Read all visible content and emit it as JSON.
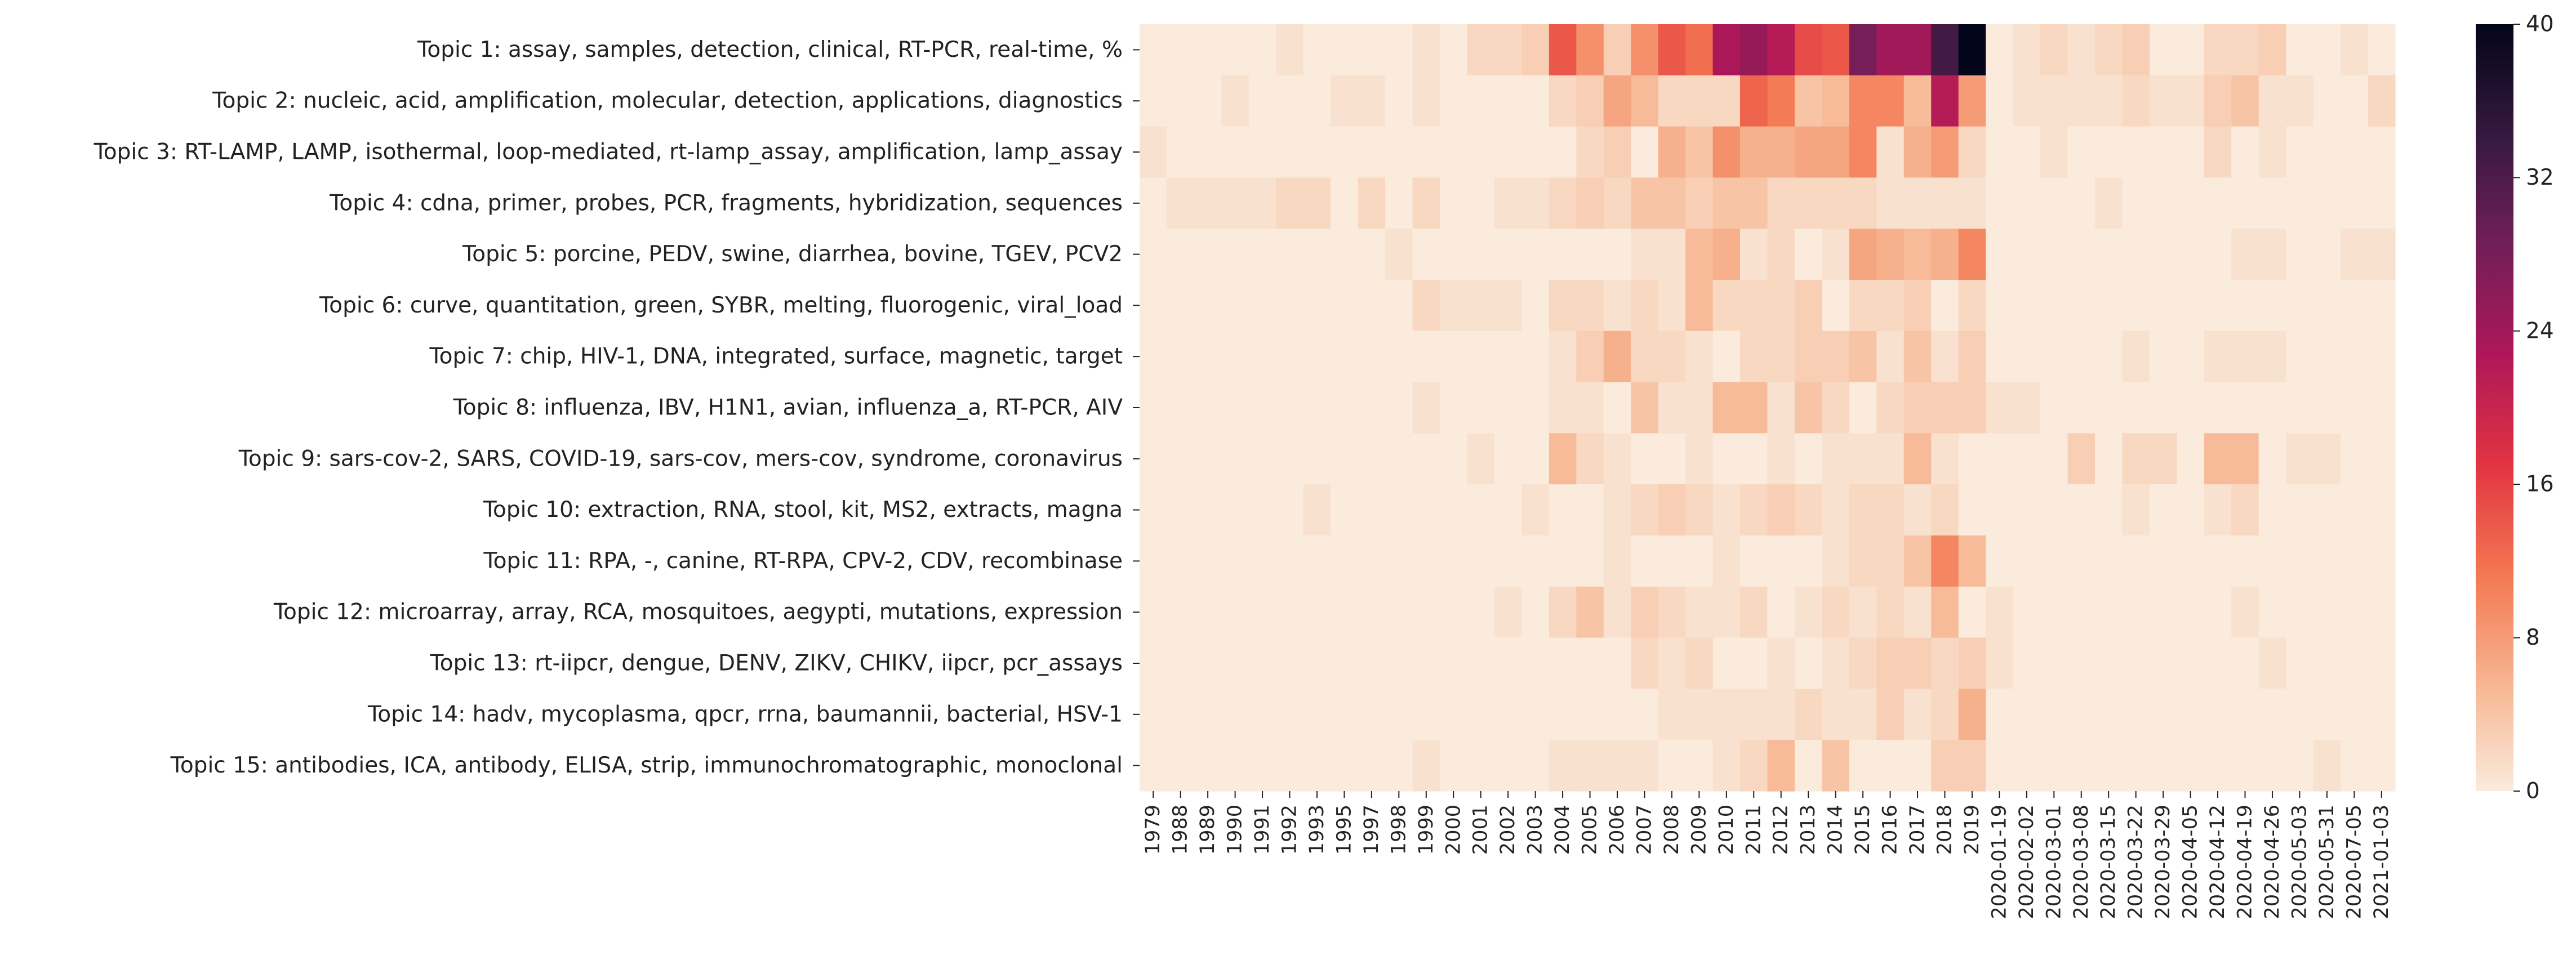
{
  "chart_data": {
    "type": "heatmap",
    "rows": [
      "Topic 1: assay, samples, detection, clinical, RT-PCR, real-time, %",
      "Topic 2: nucleic, acid, amplification, molecular, detection, applications, diagnostics",
      "Topic 3: RT-LAMP, LAMP, isothermal, loop-mediated, rt-lamp_assay, amplification, lamp_assay",
      "Topic 4: cdna, primer, probes, PCR, fragments, hybridization, sequences",
      "Topic 5: porcine, PEDV, swine, diarrhea, bovine, TGEV, PCV2",
      "Topic 6: curve, quantitation, green, SYBR, melting, fluorogenic, viral_load",
      "Topic 7: chip, HIV-1, DNA, integrated, surface, magnetic, target",
      "Topic 8: influenza, IBV, H1N1, avian, influenza_a, RT-PCR, AIV",
      "Topic 9: sars-cov-2, SARS, COVID-19, sars-cov, mers-cov, syndrome, coronavirus",
      "Topic 10: extraction, RNA, stool, kit, MS2, extracts, magna",
      "Topic 11: RPA, -, canine, RT-RPA, CPV-2, CDV, recombinase",
      "Topic 12: microarray, array, RCA, mosquitoes, aegypti, mutations, expression",
      "Topic 13: rt-iipcr, dengue, DENV, ZIKV, CHIKV, iipcr, pcr_assays",
      "Topic 14: hadv, mycoplasma, qpcr, rrna, baumannii, bacterial, HSV-1",
      "Topic 15: antibodies, ICA, antibody, ELISA, strip, immunochromatographic, monoclonal"
    ],
    "columns": [
      "1979",
      "1988",
      "1989",
      "1990",
      "1991",
      "1992",
      "1993",
      "1995",
      "1997",
      "1998",
      "1999",
      "2000",
      "2001",
      "2002",
      "2003",
      "2004",
      "2005",
      "2006",
      "2007",
      "2008",
      "2009",
      "2010",
      "2011",
      "2012",
      "2013",
      "2014",
      "2015",
      "2016",
      "2017",
      "2018",
      "2019",
      "2020-01-19",
      "2020-02-02",
      "2020-03-01",
      "2020-03-08",
      "2020-03-15",
      "2020-03-22",
      "2020-03-29",
      "2020-04-05",
      "2020-04-12",
      "2020-04-19",
      "2020-04-26",
      "2020-05-03",
      "2020-05-31",
      "2020-07-05",
      "2021-01-03"
    ],
    "values": [
      [
        0,
        0,
        0,
        0,
        0,
        1,
        0,
        0,
        0,
        0,
        1,
        0,
        2,
        2,
        3,
        14,
        9,
        3,
        9,
        14,
        12,
        23,
        25,
        22,
        15,
        14,
        28,
        24,
        24,
        33,
        40,
        0,
        1,
        2,
        1,
        2,
        3,
        0,
        0,
        2,
        2,
        3,
        0,
        0,
        1,
        0
      ],
      [
        0,
        0,
        0,
        1,
        0,
        0,
        0,
        1,
        1,
        0,
        1,
        0,
        0,
        0,
        0,
        2,
        3,
        7,
        5,
        2,
        2,
        2,
        13,
        11,
        4,
        5,
        10,
        10,
        5,
        22,
        8,
        0,
        1,
        1,
        1,
        1,
        2,
        1,
        1,
        3,
        4,
        1,
        1,
        0,
        0,
        2
      ],
      [
        1,
        0,
        0,
        0,
        0,
        0,
        0,
        0,
        0,
        0,
        0,
        0,
        0,
        0,
        0,
        0,
        2,
        3,
        0,
        6,
        4,
        9,
        6,
        6,
        7,
        7,
        10,
        1,
        6,
        8,
        2,
        0,
        0,
        1,
        0,
        0,
        0,
        0,
        0,
        2,
        0,
        1,
        0,
        0,
        0,
        0
      ],
      [
        0,
        1,
        1,
        1,
        1,
        2,
        2,
        0,
        2,
        0,
        2,
        0,
        0,
        1,
        1,
        2,
        3,
        2,
        4,
        4,
        3,
        4,
        4,
        2,
        2,
        2,
        2,
        1,
        1,
        1,
        1,
        0,
        0,
        0,
        0,
        1,
        0,
        0,
        0,
        0,
        0,
        0,
        0,
        0,
        0,
        0
      ],
      [
        0,
        0,
        0,
        0,
        0,
        0,
        0,
        0,
        0,
        1,
        0,
        0,
        0,
        0,
        0,
        0,
        0,
        0,
        1,
        1,
        5,
        6,
        1,
        2,
        0,
        1,
        7,
        6,
        5,
        6,
        10,
        0,
        0,
        0,
        0,
        0,
        0,
        0,
        0,
        0,
        1,
        1,
        0,
        0,
        1,
        1
      ],
      [
        0,
        0,
        0,
        0,
        0,
        0,
        0,
        0,
        0,
        0,
        2,
        1,
        1,
        1,
        0,
        2,
        2,
        1,
        2,
        1,
        5,
        2,
        2,
        2,
        3,
        0,
        2,
        2,
        3,
        0,
        2,
        0,
        0,
        0,
        0,
        0,
        0,
        0,
        0,
        0,
        0,
        0,
        0,
        0,
        0,
        0
      ],
      [
        0,
        0,
        0,
        0,
        0,
        0,
        0,
        0,
        0,
        0,
        0,
        0,
        0,
        0,
        0,
        1,
        3,
        6,
        2,
        2,
        1,
        0,
        2,
        2,
        3,
        3,
        4,
        1,
        4,
        1,
        3,
        0,
        0,
        0,
        0,
        0,
        1,
        0,
        0,
        1,
        1,
        1,
        0,
        0,
        0,
        0
      ],
      [
        0,
        0,
        0,
        0,
        0,
        0,
        0,
        0,
        0,
        0,
        1,
        0,
        0,
        0,
        0,
        1,
        1,
        0,
        4,
        1,
        1,
        5,
        5,
        1,
        4,
        2,
        0,
        2,
        3,
        3,
        3,
        1,
        1,
        0,
        0,
        0,
        0,
        0,
        0,
        0,
        0,
        0,
        0,
        0,
        0,
        0
      ],
      [
        0,
        0,
        0,
        0,
        0,
        0,
        0,
        0,
        0,
        0,
        0,
        0,
        1,
        0,
        0,
        5,
        2,
        1,
        0,
        0,
        1,
        0,
        0,
        1,
        0,
        1,
        1,
        1,
        5,
        1,
        0,
        0,
        0,
        0,
        3,
        0,
        2,
        2,
        0,
        5,
        5,
        0,
        1,
        1,
        0,
        0
      ],
      [
        0,
        0,
        0,
        0,
        0,
        0,
        1,
        0,
        0,
        0,
        0,
        0,
        0,
        0,
        1,
        0,
        0,
        1,
        2,
        3,
        2,
        1,
        2,
        3,
        2,
        1,
        2,
        2,
        1,
        2,
        0,
        0,
        0,
        0,
        0,
        0,
        1,
        0,
        0,
        1,
        2,
        0,
        0,
        0,
        0,
        0
      ],
      [
        0,
        0,
        0,
        0,
        0,
        0,
        0,
        0,
        0,
        0,
        0,
        0,
        0,
        0,
        0,
        0,
        0,
        1,
        0,
        0,
        0,
        1,
        0,
        0,
        0,
        1,
        2,
        2,
        4,
        10,
        5,
        0,
        0,
        0,
        0,
        0,
        0,
        0,
        0,
        0,
        0,
        0,
        0,
        0,
        0,
        0
      ],
      [
        0,
        0,
        0,
        0,
        0,
        0,
        0,
        0,
        0,
        0,
        0,
        0,
        0,
        1,
        0,
        2,
        4,
        1,
        3,
        2,
        1,
        1,
        2,
        0,
        1,
        2,
        1,
        2,
        1,
        5,
        0,
        1,
        0,
        0,
        0,
        0,
        0,
        0,
        0,
        0,
        1,
        0,
        0,
        0,
        0,
        0
      ],
      [
        0,
        0,
        0,
        0,
        0,
        0,
        0,
        0,
        0,
        0,
        0,
        0,
        0,
        0,
        0,
        0,
        0,
        0,
        2,
        1,
        2,
        0,
        0,
        1,
        0,
        1,
        2,
        3,
        3,
        2,
        3,
        1,
        0,
        0,
        0,
        0,
        0,
        0,
        0,
        0,
        0,
        1,
        0,
        0,
        0,
        0
      ],
      [
        0,
        0,
        0,
        0,
        0,
        0,
        0,
        0,
        0,
        0,
        0,
        0,
        0,
        0,
        0,
        0,
        0,
        0,
        0,
        1,
        1,
        1,
        1,
        1,
        2,
        1,
        1,
        3,
        1,
        2,
        6,
        0,
        0,
        0,
        0,
        0,
        0,
        0,
        0,
        0,
        0,
        0,
        0,
        0,
        0,
        0
      ],
      [
        0,
        0,
        0,
        0,
        0,
        0,
        0,
        0,
        0,
        0,
        1,
        0,
        0,
        0,
        0,
        1,
        1,
        1,
        1,
        0,
        0,
        1,
        2,
        5,
        0,
        4,
        0,
        0,
        0,
        3,
        3,
        0,
        0,
        0,
        0,
        0,
        0,
        0,
        0,
        0,
        0,
        0,
        0,
        1,
        0,
        0
      ]
    ],
    "vmin": 0,
    "vmax": 40,
    "colorbar_ticks": [
      "0",
      "8",
      "16",
      "24",
      "32",
      "40"
    ],
    "colormap": [
      "#faebdd",
      "#f6b48f",
      "#f37651",
      "#e13342",
      "#ad1759",
      "#701f57",
      "#35193e",
      "#03051a"
    ]
  }
}
